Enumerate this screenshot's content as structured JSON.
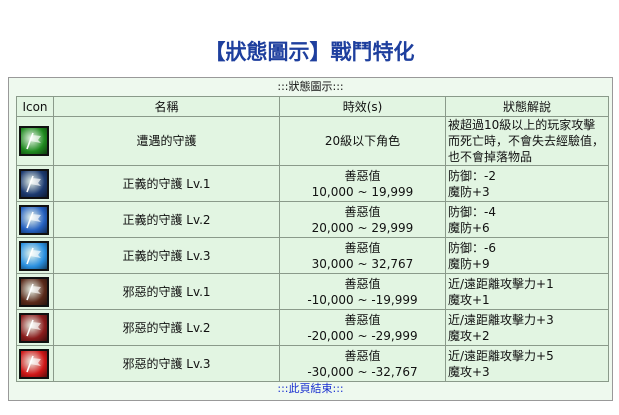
{
  "title": "【狀態圖示】戰鬥特化",
  "caption": ":::狀態圖示:::",
  "headers": [
    "Icon",
    "名稱",
    "時效(s)",
    "狀態解說"
  ],
  "rows": [
    {
      "icon": "green-flag-icon",
      "color": "#1f8a1f",
      "name": "遭遇的守護",
      "time1": "20級以下角色",
      "time2": "",
      "desc1": "被超過10級以上的玩家攻擊",
      "desc2": "而死亡時，不會失去經驗值，",
      "desc3": "也不會掉落物品"
    },
    {
      "icon": "dark-blue-flag-icon",
      "color": "#1c3a70",
      "name": "正義的守護 Lv.1",
      "time1": "善惡值",
      "time2": "10,000 ~ 19,999",
      "desc1": "防御：-2",
      "desc2": "魔防+3"
    },
    {
      "icon": "blue-flag-icon",
      "color": "#2460c0",
      "name": "正義的守護 Lv.2",
      "time1": "善惡值",
      "time2": "20,000 ~ 29,999",
      "desc1": "防御：-4",
      "desc2": "魔防+6"
    },
    {
      "icon": "light-blue-flag-icon",
      "color": "#2a90e0",
      "name": "正義的守護 Lv.3",
      "time1": "善惡值",
      "time2": "30,000 ~ 32,767",
      "desc1": "防御：-6",
      "desc2": "魔防+9"
    },
    {
      "icon": "brown-flag-icon",
      "color": "#5a2a1a",
      "name": "邪惡的守護 Lv.1",
      "time1": "善惡值",
      "time2": "-10,000 ~ -19,999",
      "desc1": "近/遠距離攻擊力+1",
      "desc2": "魔攻+1"
    },
    {
      "icon": "dark-red-flag-icon",
      "color": "#8a1c1c",
      "name": "邪惡的守護 Lv.2",
      "time1": "善惡值",
      "time2": "-20,000 ~ -29,999",
      "desc1": "近/遠距離攻擊力+3",
      "desc2": "魔攻+2"
    },
    {
      "icon": "red-flag-icon",
      "color": "#d01818",
      "name": "邪惡的守護 Lv.3",
      "time1": "善惡值",
      "time2": "-30,000 ~ -32,767",
      "desc1": "近/遠距離攻擊力+5",
      "desc2": "魔攻+3"
    }
  ],
  "footer": ":::此頁結束:::"
}
